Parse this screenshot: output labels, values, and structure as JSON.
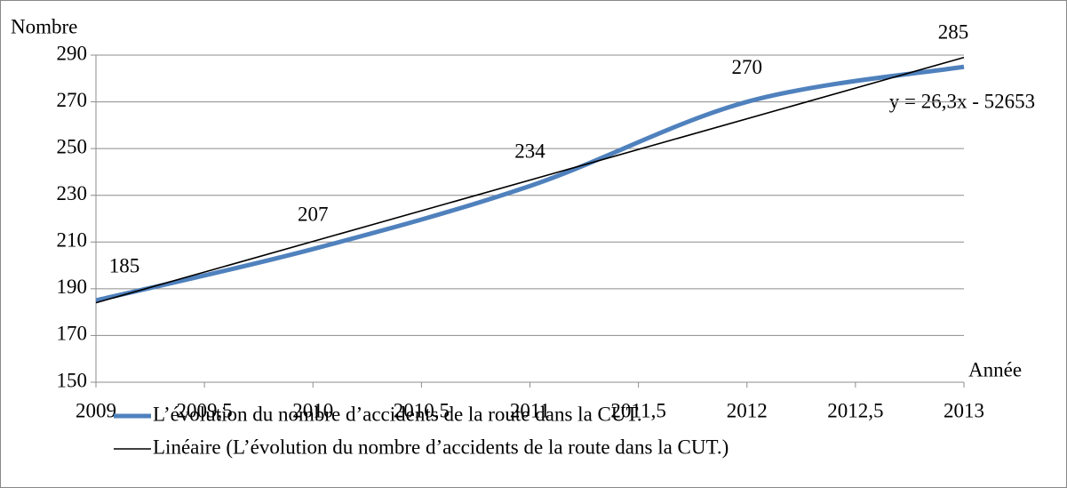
{
  "chart_data": {
    "type": "line",
    "y_label": "Nombre",
    "x_label": "Année",
    "annotation": "y = 26,3x - 52653",
    "series": [
      {
        "name": "L’évolution du nombre d’accidents de la route dans la CUT.",
        "color": "#4f81bd",
        "smooth": true,
        "x": [
          2009,
          2010,
          2011,
          2012,
          2013
        ],
        "values": [
          185,
          207,
          234,
          270,
          285
        ]
      },
      {
        "name": "Linéaire (L’évolution du nombre d’accidents de la route dans la CUT.)",
        "color": "#000000",
        "smooth": false,
        "x": [
          2009,
          2013
        ],
        "values": [
          184,
          289
        ]
      }
    ],
    "xlim": [
      2009,
      2013
    ],
    "xticks": [
      2009,
      {
        "value": 2009.5,
        "label": "2009,5"
      },
      2010,
      {
        "value": 2010.5,
        "label": "2010,5"
      },
      2011,
      {
        "value": 2011.5,
        "label": "2011,5"
      },
      2012,
      {
        "value": 2012.5,
        "label": "2012,5"
      },
      2013
    ],
    "ylim": [
      150,
      290
    ],
    "yticks": [
      150,
      170,
      190,
      210,
      230,
      250,
      270,
      290
    ],
    "grid": true
  }
}
